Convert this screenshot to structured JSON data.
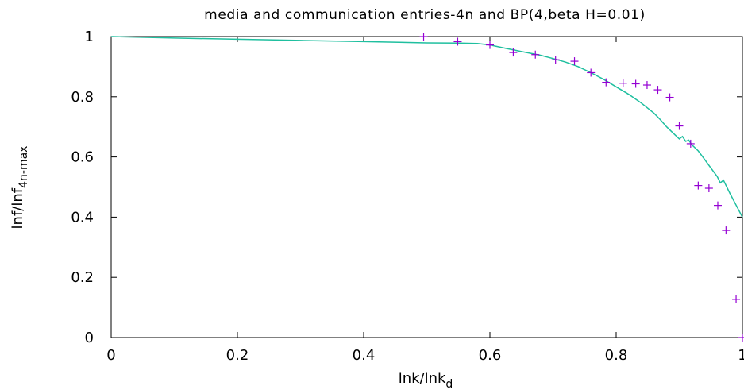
{
  "chart_data": {
    "type": "scatter",
    "title": "media and communication entries-4n and BP(4,beta H=0.01)",
    "xlabel": {
      "main": "lnk/lnk",
      "sub": "d"
    },
    "ylabel": {
      "main": "lnf/lnf",
      "sub": "4n-max"
    },
    "xlim": [
      0,
      1
    ],
    "ylim": [
      0,
      1
    ],
    "x_ticks": [
      {
        "value": 0,
        "label": "0"
      },
      {
        "value": 0.2,
        "label": "0.2"
      },
      {
        "value": 0.4,
        "label": "0.4"
      },
      {
        "value": 0.6,
        "label": "0.6"
      },
      {
        "value": 0.8,
        "label": "0.8"
      },
      {
        "value": 1,
        "label": "1"
      }
    ],
    "y_ticks": [
      {
        "value": 0,
        "label": "0"
      },
      {
        "value": 0.2,
        "label": "0.2"
      },
      {
        "value": 0.4,
        "label": "0.4"
      },
      {
        "value": 0.6,
        "label": "0.6"
      },
      {
        "value": 0.8,
        "label": "0.8"
      },
      {
        "value": 1,
        "label": "1"
      }
    ],
    "grid": false,
    "legend": "none",
    "series": [
      {
        "kind": "points",
        "marker": "+",
        "color": "#9400d3",
        "x": [
          0.495,
          0.549,
          0.6,
          0.637,
          0.672,
          0.704,
          0.734,
          0.76,
          0.784,
          0.811,
          0.831,
          0.849,
          0.866,
          0.885,
          0.9,
          0.918,
          0.93,
          0.947,
          0.961,
          0.974,
          0.99,
          1.0
        ],
        "y": [
          1.0,
          0.983,
          0.972,
          0.947,
          0.94,
          0.923,
          0.918,
          0.88,
          0.848,
          0.845,
          0.843,
          0.839,
          0.823,
          0.798,
          0.703,
          0.644,
          0.505,
          0.496,
          0.439,
          0.356,
          0.127,
          0.0
        ]
      },
      {
        "kind": "line",
        "color": "#1fbf9f",
        "x": [
          0.0,
          0.1,
          0.2,
          0.3,
          0.4,
          0.5,
          0.55,
          0.58,
          0.6,
          0.62,
          0.65,
          0.68,
          0.7,
          0.72,
          0.74,
          0.76,
          0.78,
          0.8,
          0.82,
          0.84,
          0.86,
          0.87,
          0.88,
          0.89,
          0.9,
          0.905,
          0.91,
          0.915,
          0.92,
          0.93,
          0.94,
          0.95,
          0.96,
          0.965,
          0.97,
          0.98,
          0.99,
          1.0
        ],
        "y": [
          1.0,
          0.995,
          0.991,
          0.987,
          0.983,
          0.979,
          0.978,
          0.977,
          0.972,
          0.963,
          0.95,
          0.938,
          0.927,
          0.915,
          0.9,
          0.88,
          0.858,
          0.833,
          0.808,
          0.779,
          0.745,
          0.724,
          0.7,
          0.68,
          0.66,
          0.668,
          0.652,
          0.656,
          0.64,
          0.62,
          0.592,
          0.563,
          0.535,
          0.514,
          0.523,
          0.48,
          0.44,
          0.4
        ]
      }
    ]
  }
}
